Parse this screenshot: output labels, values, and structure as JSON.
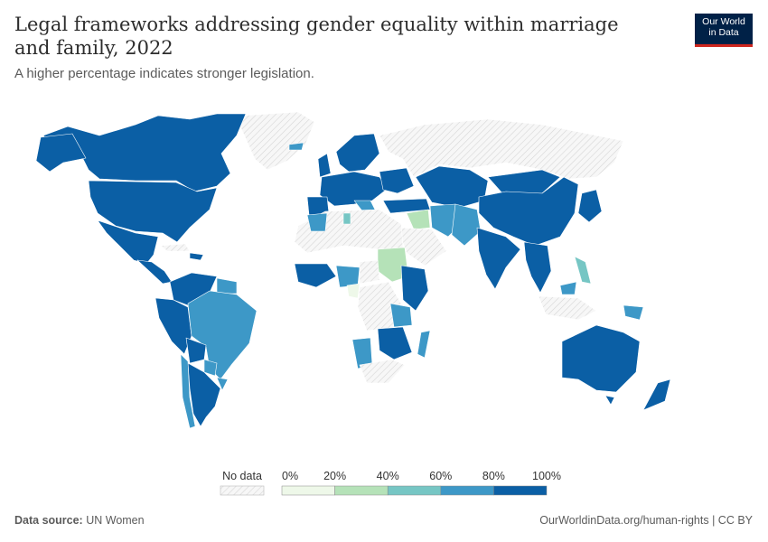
{
  "header": {
    "title": "Legal frameworks addressing gender equality within marriage and family, 2022",
    "subtitle": "A higher percentage indicates stronger legislation."
  },
  "logo": {
    "line1": "Our World",
    "line2": "in Data"
  },
  "legend": {
    "no_data_label": "No data",
    "ticks": [
      "0%",
      "20%",
      "40%",
      "60%",
      "80%",
      "100%"
    ],
    "colors": [
      "#eef8e9",
      "#b5e2b8",
      "#76c6c4",
      "#3d98c7",
      "#0b5fa5"
    ]
  },
  "footer": {
    "source_label": "Data source:",
    "source_value": "UN Women",
    "link": "OurWorldinData.org/human-rights | CC BY"
  },
  "map_data": {
    "type": "choropleth",
    "year": 2022,
    "scale": [
      "0%",
      "20%",
      "40%",
      "60%",
      "80%",
      "100%"
    ],
    "bins": [
      {
        "region": "North America",
        "range": "80-100%"
      },
      {
        "region": "Mexico & Central America",
        "range": "80-100%"
      },
      {
        "region": "Colombia, Venezuela, Ecuador, Peru",
        "range": "80-100%"
      },
      {
        "region": "Brazil",
        "range": "60-80%"
      },
      {
        "region": "Argentina, Chile",
        "range": "80-100%"
      },
      {
        "region": "Western & Northern Europe",
        "range": "80-100%"
      },
      {
        "region": "Russia",
        "range": "No data"
      },
      {
        "region": "Central Asia",
        "range": "80-100%"
      },
      {
        "region": "China",
        "range": "80-100%"
      },
      {
        "region": "India",
        "range": "80-100%"
      },
      {
        "region": "Pakistan, Iran",
        "range": "60-80%"
      },
      {
        "region": "Iraq",
        "range": "20-40%"
      },
      {
        "region": "Sudan",
        "range": "20-40%"
      },
      {
        "region": "Ethiopia, Kenya",
        "range": "80-100%"
      },
      {
        "region": "Tanzania, Zambia",
        "range": "60-80%"
      },
      {
        "region": "Mozambique, Zimbabwe",
        "range": "80-100%"
      },
      {
        "region": "Namibia",
        "range": "60-80%"
      },
      {
        "region": "Nigeria",
        "range": "60-80%"
      },
      {
        "region": "Australia, New Zealand",
        "range": "80-100%"
      },
      {
        "region": "Papua New Guinea",
        "range": "60-80%"
      },
      {
        "region": "Philippines",
        "range": "40-60%"
      },
      {
        "region": "Indonesia",
        "range": "No data"
      }
    ]
  }
}
